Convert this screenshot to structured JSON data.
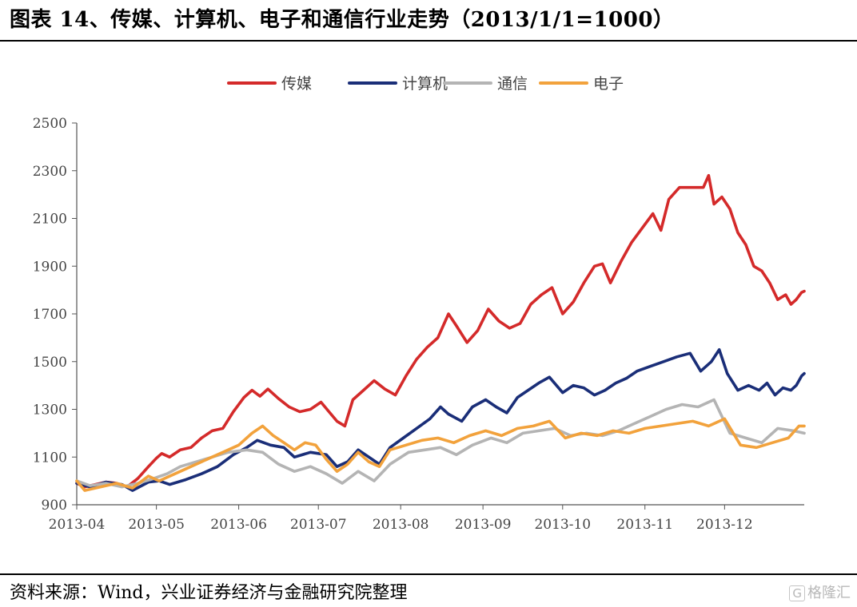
{
  "header": {
    "title": "图表 14、传媒、计算机、电子和通信行业走势（2013/1/1=1000）"
  },
  "footer": {
    "source": "资料来源：Wind，兴业证券经济与金融研究院整理",
    "watermark_logo": "G",
    "watermark_text": "格隆汇"
  },
  "chart_data": {
    "type": "line",
    "title": "",
    "xlabel": "",
    "ylabel": "",
    "ylim": [
      900,
      2500
    ],
    "yticks": [
      900,
      1100,
      1300,
      1500,
      1700,
      1900,
      2100,
      2300,
      2500
    ],
    "xlim": [
      "2013-04-01",
      "2013-12-31"
    ],
    "xticks": [
      "2013-04",
      "2013-05",
      "2013-06",
      "2013-07",
      "2013-08",
      "2013-09",
      "2013-10",
      "2013-11",
      "2013-12"
    ],
    "grid": false,
    "legend_position": "top",
    "series": [
      {
        "name": "传媒",
        "color": "#d42a2a",
        "points": [
          [
            "2013-04-01",
            990
          ],
          [
            "2013-04-04",
            975
          ],
          [
            "2013-04-08",
            985
          ],
          [
            "2013-04-12",
            995
          ],
          [
            "2013-04-16",
            990
          ],
          [
            "2013-04-20",
            975
          ],
          [
            "2013-04-24",
            1010
          ],
          [
            "2013-04-28",
            1060
          ],
          [
            "2013-05-01",
            1095
          ],
          [
            "2013-05-03",
            1115
          ],
          [
            "2013-05-06",
            1100
          ],
          [
            "2013-05-10",
            1130
          ],
          [
            "2013-05-14",
            1140
          ],
          [
            "2013-05-18",
            1180
          ],
          [
            "2013-05-22",
            1210
          ],
          [
            "2013-05-26",
            1220
          ],
          [
            "2013-05-30",
            1290
          ],
          [
            "2013-06-03",
            1350
          ],
          [
            "2013-06-06",
            1380
          ],
          [
            "2013-06-09",
            1355
          ],
          [
            "2013-06-12",
            1385
          ],
          [
            "2013-06-16",
            1345
          ],
          [
            "2013-06-20",
            1310
          ],
          [
            "2013-06-24",
            1290
          ],
          [
            "2013-06-28",
            1300
          ],
          [
            "2013-07-02",
            1330
          ],
          [
            "2013-07-05",
            1290
          ],
          [
            "2013-07-08",
            1250
          ],
          [
            "2013-07-11",
            1230
          ],
          [
            "2013-07-14",
            1340
          ],
          [
            "2013-07-18",
            1380
          ],
          [
            "2013-07-22",
            1420
          ],
          [
            "2013-07-26",
            1385
          ],
          [
            "2013-07-30",
            1360
          ],
          [
            "2013-08-03",
            1440
          ],
          [
            "2013-08-07",
            1510
          ],
          [
            "2013-08-11",
            1560
          ],
          [
            "2013-08-15",
            1600
          ],
          [
            "2013-08-19",
            1700
          ],
          [
            "2013-08-22",
            1650
          ],
          [
            "2013-08-26",
            1580
          ],
          [
            "2013-08-30",
            1630
          ],
          [
            "2013-09-03",
            1720
          ],
          [
            "2013-09-07",
            1670
          ],
          [
            "2013-09-11",
            1640
          ],
          [
            "2013-09-15",
            1660
          ],
          [
            "2013-09-19",
            1740
          ],
          [
            "2013-09-23",
            1780
          ],
          [
            "2013-09-27",
            1810
          ],
          [
            "2013-10-01",
            1700
          ],
          [
            "2013-10-05",
            1750
          ],
          [
            "2013-10-09",
            1830
          ],
          [
            "2013-10-13",
            1900
          ],
          [
            "2013-10-16",
            1910
          ],
          [
            "2013-10-19",
            1830
          ],
          [
            "2013-10-23",
            1920
          ],
          [
            "2013-10-27",
            2000
          ],
          [
            "2013-10-31",
            2060
          ],
          [
            "2013-11-04",
            2120
          ],
          [
            "2013-11-07",
            2050
          ],
          [
            "2013-11-10",
            2180
          ],
          [
            "2013-11-14",
            2230
          ],
          [
            "2013-11-19",
            2230
          ],
          [
            "2013-11-23",
            2230
          ],
          [
            "2013-11-25",
            2280
          ],
          [
            "2013-11-27",
            2160
          ],
          [
            "2013-11-30",
            2190
          ],
          [
            "2013-12-03",
            2140
          ],
          [
            "2013-12-06",
            2040
          ],
          [
            "2013-12-09",
            1990
          ],
          [
            "2013-12-12",
            1900
          ],
          [
            "2013-12-15",
            1880
          ],
          [
            "2013-12-18",
            1830
          ],
          [
            "2013-12-21",
            1760
          ],
          [
            "2013-12-24",
            1780
          ],
          [
            "2013-12-26",
            1740
          ],
          [
            "2013-12-28",
            1760
          ],
          [
            "2013-12-30",
            1790
          ],
          [
            "2013-12-31",
            1795
          ]
        ]
      },
      {
        "name": "计算机",
        "color": "#1a2e78",
        "points": [
          [
            "2013-04-01",
            990
          ],
          [
            "2013-04-06",
            975
          ],
          [
            "2013-04-12",
            995
          ],
          [
            "2013-04-18",
            985
          ],
          [
            "2013-04-22",
            960
          ],
          [
            "2013-04-28",
            995
          ],
          [
            "2013-05-02",
            1000
          ],
          [
            "2013-05-06",
            985
          ],
          [
            "2013-05-12",
            1005
          ],
          [
            "2013-05-18",
            1030
          ],
          [
            "2013-05-24",
            1060
          ],
          [
            "2013-05-30",
            1110
          ],
          [
            "2013-06-04",
            1140
          ],
          [
            "2013-06-08",
            1170
          ],
          [
            "2013-06-13",
            1150
          ],
          [
            "2013-06-18",
            1140
          ],
          [
            "2013-06-22",
            1100
          ],
          [
            "2013-06-28",
            1120
          ],
          [
            "2013-07-04",
            1110
          ],
          [
            "2013-07-08",
            1060
          ],
          [
            "2013-07-12",
            1080
          ],
          [
            "2013-07-16",
            1130
          ],
          [
            "2013-07-20",
            1100
          ],
          [
            "2013-07-24",
            1070
          ],
          [
            "2013-07-28",
            1140
          ],
          [
            "2013-08-02",
            1180
          ],
          [
            "2013-08-07",
            1220
          ],
          [
            "2013-08-12",
            1260
          ],
          [
            "2013-08-16",
            1310
          ],
          [
            "2013-08-19",
            1280
          ],
          [
            "2013-08-24",
            1250
          ],
          [
            "2013-08-28",
            1310
          ],
          [
            "2013-09-02",
            1340
          ],
          [
            "2013-09-06",
            1310
          ],
          [
            "2013-09-10",
            1285
          ],
          [
            "2013-09-14",
            1350
          ],
          [
            "2013-09-18",
            1380
          ],
          [
            "2013-09-22",
            1410
          ],
          [
            "2013-09-26",
            1435
          ],
          [
            "2013-10-01",
            1370
          ],
          [
            "2013-10-05",
            1400
          ],
          [
            "2013-10-09",
            1390
          ],
          [
            "2013-10-13",
            1360
          ],
          [
            "2013-10-17",
            1380
          ],
          [
            "2013-10-21",
            1410
          ],
          [
            "2013-10-25",
            1430
          ],
          [
            "2013-10-29",
            1460
          ],
          [
            "2013-11-03",
            1480
          ],
          [
            "2013-11-08",
            1500
          ],
          [
            "2013-11-13",
            1520
          ],
          [
            "2013-11-18",
            1535
          ],
          [
            "2013-11-22",
            1460
          ],
          [
            "2013-11-26",
            1500
          ],
          [
            "2013-11-29",
            1550
          ],
          [
            "2013-12-02",
            1450
          ],
          [
            "2013-12-06",
            1380
          ],
          [
            "2013-12-10",
            1400
          ],
          [
            "2013-12-14",
            1380
          ],
          [
            "2013-12-17",
            1410
          ],
          [
            "2013-12-20",
            1360
          ],
          [
            "2013-12-23",
            1390
          ],
          [
            "2013-12-26",
            1380
          ],
          [
            "2013-12-28",
            1400
          ],
          [
            "2013-12-30",
            1440
          ],
          [
            "2013-12-31",
            1450
          ]
        ]
      },
      {
        "name": "通信",
        "color": "#b4b4b4",
        "points": [
          [
            "2013-04-01",
            1000
          ],
          [
            "2013-04-06",
            980
          ],
          [
            "2013-04-12",
            990
          ],
          [
            "2013-04-18",
            975
          ],
          [
            "2013-04-24",
            990
          ],
          [
            "2013-04-30",
            1010
          ],
          [
            "2013-05-05",
            1030
          ],
          [
            "2013-05-10",
            1060
          ],
          [
            "2013-05-16",
            1080
          ],
          [
            "2013-05-22",
            1100
          ],
          [
            "2013-05-28",
            1120
          ],
          [
            "2013-06-04",
            1130
          ],
          [
            "2013-06-10",
            1120
          ],
          [
            "2013-06-16",
            1070
          ],
          [
            "2013-06-22",
            1040
          ],
          [
            "2013-06-28",
            1060
          ],
          [
            "2013-07-04",
            1030
          ],
          [
            "2013-07-10",
            990
          ],
          [
            "2013-07-16",
            1040
          ],
          [
            "2013-07-22",
            1000
          ],
          [
            "2013-07-28",
            1070
          ],
          [
            "2013-08-04",
            1120
          ],
          [
            "2013-08-10",
            1130
          ],
          [
            "2013-08-16",
            1140
          ],
          [
            "2013-08-22",
            1110
          ],
          [
            "2013-08-28",
            1150
          ],
          [
            "2013-09-04",
            1180
          ],
          [
            "2013-09-10",
            1160
          ],
          [
            "2013-09-16",
            1200
          ],
          [
            "2013-09-22",
            1210
          ],
          [
            "2013-09-28",
            1220
          ],
          [
            "2013-10-04",
            1190
          ],
          [
            "2013-10-10",
            1200
          ],
          [
            "2013-10-16",
            1190
          ],
          [
            "2013-10-22",
            1210
          ],
          [
            "2013-10-28",
            1240
          ],
          [
            "2013-11-03",
            1270
          ],
          [
            "2013-11-09",
            1300
          ],
          [
            "2013-11-15",
            1320
          ],
          [
            "2013-11-21",
            1310
          ],
          [
            "2013-11-27",
            1340
          ],
          [
            "2013-12-03",
            1200
          ],
          [
            "2013-12-09",
            1180
          ],
          [
            "2013-12-15",
            1160
          ],
          [
            "2013-12-21",
            1220
          ],
          [
            "2013-12-27",
            1210
          ],
          [
            "2013-12-31",
            1200
          ]
        ]
      },
      {
        "name": "电子",
        "color": "#f2a23c",
        "points": [
          [
            "2013-04-01",
            1000
          ],
          [
            "2013-04-04",
            960
          ],
          [
            "2013-04-10",
            975
          ],
          [
            "2013-04-16",
            990
          ],
          [
            "2013-04-22",
            970
          ],
          [
            "2013-04-28",
            1020
          ],
          [
            "2013-05-02",
            1000
          ],
          [
            "2013-05-08",
            1030
          ],
          [
            "2013-05-14",
            1060
          ],
          [
            "2013-05-20",
            1090
          ],
          [
            "2013-05-26",
            1120
          ],
          [
            "2013-06-01",
            1150
          ],
          [
            "2013-06-06",
            1200
          ],
          [
            "2013-06-10",
            1230
          ],
          [
            "2013-06-14",
            1190
          ],
          [
            "2013-06-18",
            1160
          ],
          [
            "2013-06-22",
            1130
          ],
          [
            "2013-06-26",
            1160
          ],
          [
            "2013-06-30",
            1150
          ],
          [
            "2013-07-04",
            1090
          ],
          [
            "2013-07-08",
            1040
          ],
          [
            "2013-07-12",
            1070
          ],
          [
            "2013-07-16",
            1120
          ],
          [
            "2013-07-20",
            1080
          ],
          [
            "2013-07-24",
            1060
          ],
          [
            "2013-07-28",
            1130
          ],
          [
            "2013-08-03",
            1150
          ],
          [
            "2013-08-09",
            1170
          ],
          [
            "2013-08-15",
            1180
          ],
          [
            "2013-08-21",
            1160
          ],
          [
            "2013-08-27",
            1190
          ],
          [
            "2013-09-02",
            1210
          ],
          [
            "2013-09-08",
            1190
          ],
          [
            "2013-09-14",
            1220
          ],
          [
            "2013-09-20",
            1230
          ],
          [
            "2013-09-26",
            1250
          ],
          [
            "2013-10-02",
            1180
          ],
          [
            "2013-10-08",
            1200
          ],
          [
            "2013-10-14",
            1190
          ],
          [
            "2013-10-20",
            1210
          ],
          [
            "2013-10-26",
            1200
          ],
          [
            "2013-11-01",
            1220
          ],
          [
            "2013-11-07",
            1230
          ],
          [
            "2013-11-13",
            1240
          ],
          [
            "2013-11-19",
            1250
          ],
          [
            "2013-11-25",
            1230
          ],
          [
            "2013-12-01",
            1260
          ],
          [
            "2013-12-07",
            1150
          ],
          [
            "2013-12-13",
            1140
          ],
          [
            "2013-12-19",
            1160
          ],
          [
            "2013-12-25",
            1180
          ],
          [
            "2013-12-29",
            1230
          ],
          [
            "2013-12-31",
            1230
          ]
        ]
      }
    ]
  }
}
